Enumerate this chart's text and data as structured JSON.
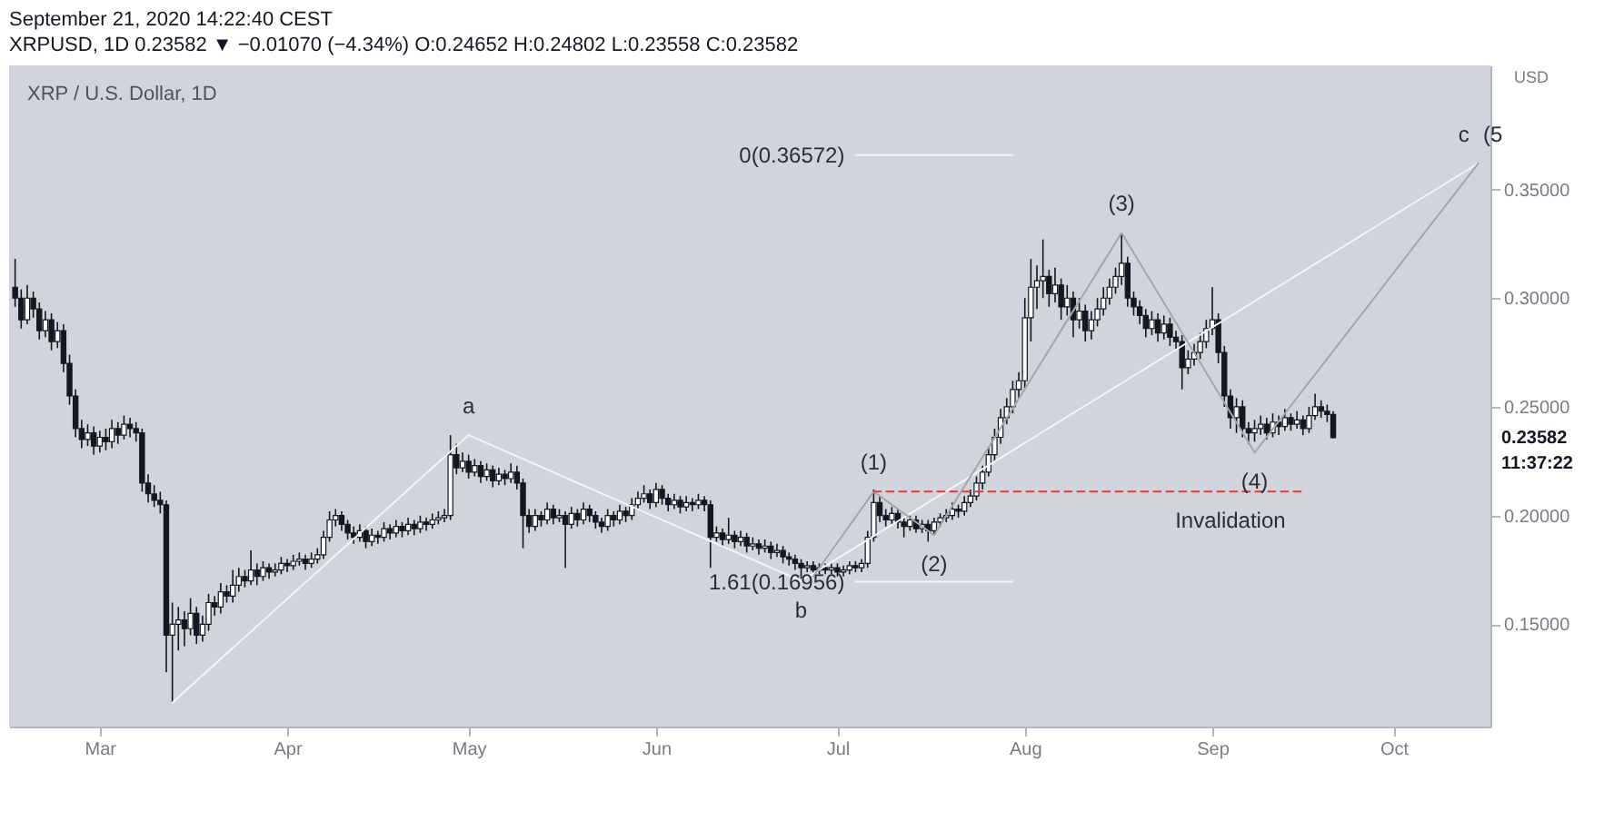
{
  "chart_data": {
    "type": "candlestick",
    "title": "September 21, 2020 14:22:40 CEST",
    "subtitle": "XRPUSD, 1D 0.23582 ▼ −0.01070 (−4.34%) O:0.24652 H:0.24802 L:0.23558 C:0.23582",
    "ylabel": "USD",
    "xlim": [
      "2020-02-15",
      "2020-10-17"
    ],
    "ylim": [
      0.103,
      0.407
    ],
    "xticks": [
      {
        "value": "2020-03-01",
        "label": "Mar"
      },
      {
        "value": "2020-04-01",
        "label": "Apr"
      },
      {
        "value": "2020-05-01",
        "label": "May"
      },
      {
        "value": "2020-06-01",
        "label": "Jun"
      },
      {
        "value": "2020-07-01",
        "label": "Jul"
      },
      {
        "value": "2020-08-01",
        "label": "Aug"
      },
      {
        "value": "2020-09-01",
        "label": "Sep"
      },
      {
        "value": "2020-10-01",
        "label": "Oct"
      }
    ],
    "yticks": [
      {
        "value": 0.15,
        "label": "0.15000"
      },
      {
        "value": 0.2,
        "label": "0.20000"
      },
      {
        "value": 0.25,
        "label": "0.25000"
      },
      {
        "value": 0.3,
        "label": "0.30000"
      },
      {
        "value": 0.35,
        "label": "0.35000"
      }
    ],
    "x": [
      "2020-02-16",
      "2020-02-17",
      "2020-02-18",
      "2020-02-19",
      "2020-02-20",
      "2020-02-21",
      "2020-02-22",
      "2020-02-23",
      "2020-02-24",
      "2020-02-25",
      "2020-02-26",
      "2020-02-27",
      "2020-02-28",
      "2020-02-29",
      "2020-03-01",
      "2020-03-02",
      "2020-03-03",
      "2020-03-04",
      "2020-03-05",
      "2020-03-06",
      "2020-03-07",
      "2020-03-08",
      "2020-03-09",
      "2020-03-10",
      "2020-03-11",
      "2020-03-12",
      "2020-03-13",
      "2020-03-14",
      "2020-03-15",
      "2020-03-16",
      "2020-03-17",
      "2020-03-18",
      "2020-03-19",
      "2020-03-20",
      "2020-03-21",
      "2020-03-22",
      "2020-03-23",
      "2020-03-24",
      "2020-03-25",
      "2020-03-26",
      "2020-03-27",
      "2020-03-28",
      "2020-03-29",
      "2020-03-30",
      "2020-03-31",
      "2020-04-01",
      "2020-04-02",
      "2020-04-03",
      "2020-04-04",
      "2020-04-05",
      "2020-04-06",
      "2020-04-07",
      "2020-04-08",
      "2020-04-09",
      "2020-04-10",
      "2020-04-11",
      "2020-04-12",
      "2020-04-13",
      "2020-04-14",
      "2020-04-15",
      "2020-04-16",
      "2020-04-17",
      "2020-04-18",
      "2020-04-19",
      "2020-04-20",
      "2020-04-21",
      "2020-04-22",
      "2020-04-23",
      "2020-04-24",
      "2020-04-25",
      "2020-04-26",
      "2020-04-27",
      "2020-04-28",
      "2020-04-29",
      "2020-04-30",
      "2020-05-01",
      "2020-05-02",
      "2020-05-03",
      "2020-05-04",
      "2020-05-05",
      "2020-05-06",
      "2020-05-07",
      "2020-05-08",
      "2020-05-09",
      "2020-05-10",
      "2020-05-11",
      "2020-05-12",
      "2020-05-13",
      "2020-05-14",
      "2020-05-15",
      "2020-05-16",
      "2020-05-17",
      "2020-05-18",
      "2020-05-19",
      "2020-05-20",
      "2020-05-21",
      "2020-05-22",
      "2020-05-23",
      "2020-05-24",
      "2020-05-25",
      "2020-05-26",
      "2020-05-27",
      "2020-05-28",
      "2020-05-29",
      "2020-05-30",
      "2020-05-31",
      "2020-06-01",
      "2020-06-02",
      "2020-06-03",
      "2020-06-04",
      "2020-06-05",
      "2020-06-06",
      "2020-06-07",
      "2020-06-08",
      "2020-06-09",
      "2020-06-10",
      "2020-06-11",
      "2020-06-12",
      "2020-06-13",
      "2020-06-14",
      "2020-06-15",
      "2020-06-16",
      "2020-06-17",
      "2020-06-18",
      "2020-06-19",
      "2020-06-20",
      "2020-06-21",
      "2020-06-22",
      "2020-06-23",
      "2020-06-24",
      "2020-06-25",
      "2020-06-26",
      "2020-06-27",
      "2020-06-28",
      "2020-06-29",
      "2020-06-30",
      "2020-07-01",
      "2020-07-02",
      "2020-07-03",
      "2020-07-04",
      "2020-07-05",
      "2020-07-06",
      "2020-07-07",
      "2020-07-08",
      "2020-07-09",
      "2020-07-10",
      "2020-07-11",
      "2020-07-12",
      "2020-07-13",
      "2020-07-14",
      "2020-07-15",
      "2020-07-16",
      "2020-07-17",
      "2020-07-18",
      "2020-07-19",
      "2020-07-20",
      "2020-07-21",
      "2020-07-22",
      "2020-07-23",
      "2020-07-24",
      "2020-07-25",
      "2020-07-26",
      "2020-07-27",
      "2020-07-28",
      "2020-07-29",
      "2020-07-30",
      "2020-07-31",
      "2020-08-01",
      "2020-08-02",
      "2020-08-03",
      "2020-08-04",
      "2020-08-05",
      "2020-08-06",
      "2020-08-07",
      "2020-08-08",
      "2020-08-09",
      "2020-08-10",
      "2020-08-11",
      "2020-08-12",
      "2020-08-13",
      "2020-08-14",
      "2020-08-15",
      "2020-08-16",
      "2020-08-17",
      "2020-08-18",
      "2020-08-19",
      "2020-08-20",
      "2020-08-21",
      "2020-08-22",
      "2020-08-23",
      "2020-08-24",
      "2020-08-25",
      "2020-08-26",
      "2020-08-27",
      "2020-08-28",
      "2020-08-29",
      "2020-08-30",
      "2020-08-31",
      "2020-09-01",
      "2020-09-02",
      "2020-09-03",
      "2020-09-04",
      "2020-09-05",
      "2020-09-06",
      "2020-09-07",
      "2020-09-08",
      "2020-09-09",
      "2020-09-10",
      "2020-09-11",
      "2020-09-12",
      "2020-09-13",
      "2020-09-14",
      "2020-09-15",
      "2020-09-16",
      "2020-09-17",
      "2020-09-18",
      "2020-09-19",
      "2020-09-20",
      "2020-09-21"
    ],
    "ohlc": [
      [
        0.305,
        0.318,
        0.296,
        0.3
      ],
      [
        0.3,
        0.304,
        0.286,
        0.29
      ],
      [
        0.29,
        0.306,
        0.288,
        0.3
      ],
      [
        0.3,
        0.303,
        0.291,
        0.295
      ],
      [
        0.295,
        0.298,
        0.281,
        0.285
      ],
      [
        0.285,
        0.294,
        0.282,
        0.29
      ],
      [
        0.29,
        0.293,
        0.276,
        0.28
      ],
      [
        0.28,
        0.289,
        0.277,
        0.285
      ],
      [
        0.285,
        0.288,
        0.266,
        0.27
      ],
      [
        0.27,
        0.274,
        0.251,
        0.255
      ],
      [
        0.255,
        0.258,
        0.236,
        0.24
      ],
      [
        0.24,
        0.244,
        0.231,
        0.235
      ],
      [
        0.235,
        0.242,
        0.232,
        0.238
      ],
      [
        0.238,
        0.241,
        0.228,
        0.232
      ],
      [
        0.232,
        0.239,
        0.229,
        0.236
      ],
      [
        0.236,
        0.24,
        0.23,
        0.234
      ],
      [
        0.234,
        0.244,
        0.231,
        0.24
      ],
      [
        0.24,
        0.243,
        0.233,
        0.237
      ],
      [
        0.237,
        0.246,
        0.235,
        0.242
      ],
      [
        0.242,
        0.245,
        0.236,
        0.24
      ],
      [
        0.24,
        0.243,
        0.234,
        0.238
      ],
      [
        0.238,
        0.24,
        0.211,
        0.215
      ],
      [
        0.215,
        0.219,
        0.206,
        0.21
      ],
      [
        0.21,
        0.214,
        0.204,
        0.207
      ],
      [
        0.207,
        0.211,
        0.201,
        0.205
      ],
      [
        0.205,
        0.207,
        0.128,
        0.145
      ],
      [
        0.145,
        0.16,
        0.114,
        0.15
      ],
      [
        0.15,
        0.158,
        0.138,
        0.152
      ],
      [
        0.152,
        0.156,
        0.14,
        0.148
      ],
      [
        0.148,
        0.162,
        0.145,
        0.155
      ],
      [
        0.155,
        0.158,
        0.141,
        0.145
      ],
      [
        0.145,
        0.154,
        0.142,
        0.15
      ],
      [
        0.15,
        0.164,
        0.147,
        0.16
      ],
      [
        0.16,
        0.163,
        0.154,
        0.158
      ],
      [
        0.158,
        0.169,
        0.155,
        0.165
      ],
      [
        0.165,
        0.168,
        0.16,
        0.163
      ],
      [
        0.163,
        0.175,
        0.16,
        0.168
      ],
      [
        0.168,
        0.176,
        0.165,
        0.172
      ],
      [
        0.172,
        0.175,
        0.167,
        0.17
      ],
      [
        0.17,
        0.184,
        0.168,
        0.175
      ],
      [
        0.175,
        0.178,
        0.168,
        0.172
      ],
      [
        0.172,
        0.179,
        0.17,
        0.176
      ],
      [
        0.176,
        0.178,
        0.171,
        0.174
      ],
      [
        0.174,
        0.178,
        0.172,
        0.175
      ],
      [
        0.175,
        0.181,
        0.173,
        0.178
      ],
      [
        0.178,
        0.18,
        0.174,
        0.177
      ],
      [
        0.177,
        0.182,
        0.175,
        0.179
      ],
      [
        0.179,
        0.183,
        0.177,
        0.18
      ],
      [
        0.18,
        0.182,
        0.175,
        0.178
      ],
      [
        0.178,
        0.183,
        0.176,
        0.18
      ],
      [
        0.18,
        0.185,
        0.178,
        0.182
      ],
      [
        0.182,
        0.193,
        0.18,
        0.19
      ],
      [
        0.19,
        0.202,
        0.188,
        0.198
      ],
      [
        0.198,
        0.203,
        0.195,
        0.2
      ],
      [
        0.2,
        0.202,
        0.193,
        0.196
      ],
      [
        0.196,
        0.198,
        0.189,
        0.192
      ],
      [
        0.192,
        0.195,
        0.187,
        0.19
      ],
      [
        0.19,
        0.196,
        0.188,
        0.193
      ],
      [
        0.193,
        0.195,
        0.185,
        0.188
      ],
      [
        0.188,
        0.194,
        0.186,
        0.191
      ],
      [
        0.191,
        0.193,
        0.187,
        0.19
      ],
      [
        0.19,
        0.197,
        0.188,
        0.194
      ],
      [
        0.194,
        0.196,
        0.189,
        0.192
      ],
      [
        0.192,
        0.198,
        0.19,
        0.195
      ],
      [
        0.195,
        0.197,
        0.19,
        0.193
      ],
      [
        0.193,
        0.199,
        0.191,
        0.196
      ],
      [
        0.196,
        0.198,
        0.191,
        0.194
      ],
      [
        0.194,
        0.2,
        0.192,
        0.197
      ],
      [
        0.197,
        0.199,
        0.193,
        0.196
      ],
      [
        0.196,
        0.201,
        0.194,
        0.198
      ],
      [
        0.198,
        0.202,
        0.196,
        0.199
      ],
      [
        0.199,
        0.203,
        0.197,
        0.2
      ],
      [
        0.2,
        0.237,
        0.198,
        0.228
      ],
      [
        0.228,
        0.233,
        0.219,
        0.222
      ],
      [
        0.222,
        0.229,
        0.22,
        0.225
      ],
      [
        0.225,
        0.228,
        0.217,
        0.22
      ],
      [
        0.22,
        0.226,
        0.218,
        0.223
      ],
      [
        0.223,
        0.225,
        0.215,
        0.218
      ],
      [
        0.218,
        0.224,
        0.216,
        0.221
      ],
      [
        0.221,
        0.223,
        0.213,
        0.216
      ],
      [
        0.216,
        0.222,
        0.214,
        0.219
      ],
      [
        0.219,
        0.221,
        0.214,
        0.217
      ],
      [
        0.217,
        0.224,
        0.215,
        0.22
      ],
      [
        0.22,
        0.223,
        0.212,
        0.215
      ],
      [
        0.215,
        0.217,
        0.185,
        0.2
      ],
      [
        0.2,
        0.203,
        0.192,
        0.195
      ],
      [
        0.195,
        0.203,
        0.193,
        0.2
      ],
      [
        0.2,
        0.202,
        0.195,
        0.198
      ],
      [
        0.198,
        0.206,
        0.196,
        0.203
      ],
      [
        0.203,
        0.205,
        0.196,
        0.199
      ],
      [
        0.199,
        0.203,
        0.197,
        0.2
      ],
      [
        0.2,
        0.202,
        0.176,
        0.196
      ],
      [
        0.196,
        0.204,
        0.194,
        0.201
      ],
      [
        0.201,
        0.203,
        0.195,
        0.198
      ],
      [
        0.198,
        0.206,
        0.196,
        0.203
      ],
      [
        0.203,
        0.205,
        0.197,
        0.2
      ],
      [
        0.2,
        0.202,
        0.194,
        0.197
      ],
      [
        0.197,
        0.199,
        0.192,
        0.195
      ],
      [
        0.195,
        0.203,
        0.193,
        0.2
      ],
      [
        0.2,
        0.202,
        0.195,
        0.198
      ],
      [
        0.198,
        0.205,
        0.196,
        0.202
      ],
      [
        0.202,
        0.204,
        0.197,
        0.2
      ],
      [
        0.2,
        0.208,
        0.198,
        0.205
      ],
      [
        0.205,
        0.211,
        0.203,
        0.208
      ],
      [
        0.208,
        0.214,
        0.206,
        0.21
      ],
      [
        0.21,
        0.212,
        0.203,
        0.206
      ],
      [
        0.206,
        0.215,
        0.204,
        0.212
      ],
      [
        0.212,
        0.214,
        0.205,
        0.208
      ],
      [
        0.208,
        0.21,
        0.202,
        0.205
      ],
      [
        0.205,
        0.21,
        0.203,
        0.207
      ],
      [
        0.207,
        0.209,
        0.201,
        0.204
      ],
      [
        0.204,
        0.209,
        0.202,
        0.206
      ],
      [
        0.206,
        0.208,
        0.202,
        0.205
      ],
      [
        0.205,
        0.21,
        0.203,
        0.207
      ],
      [
        0.207,
        0.209,
        0.202,
        0.205
      ],
      [
        0.205,
        0.207,
        0.176,
        0.19
      ],
      [
        0.19,
        0.195,
        0.188,
        0.192
      ],
      [
        0.192,
        0.194,
        0.186,
        0.189
      ],
      [
        0.189,
        0.199,
        0.187,
        0.191
      ],
      [
        0.191,
        0.193,
        0.185,
        0.188
      ],
      [
        0.188,
        0.193,
        0.186,
        0.19
      ],
      [
        0.19,
        0.192,
        0.183,
        0.186
      ],
      [
        0.186,
        0.19,
        0.184,
        0.187
      ],
      [
        0.187,
        0.189,
        0.182,
        0.185
      ],
      [
        0.185,
        0.189,
        0.183,
        0.186
      ],
      [
        0.186,
        0.188,
        0.18,
        0.183
      ],
      [
        0.183,
        0.187,
        0.181,
        0.184
      ],
      [
        0.184,
        0.186,
        0.178,
        0.181
      ],
      [
        0.181,
        0.183,
        0.177,
        0.18
      ],
      [
        0.18,
        0.182,
        0.175,
        0.178
      ],
      [
        0.178,
        0.18,
        0.171,
        0.176
      ],
      [
        0.176,
        0.179,
        0.174,
        0.177
      ],
      [
        0.177,
        0.179,
        0.173,
        0.175
      ],
      [
        0.175,
        0.178,
        0.173,
        0.176
      ],
      [
        0.176,
        0.178,
        0.173,
        0.175
      ],
      [
        0.175,
        0.178,
        0.173,
        0.176
      ],
      [
        0.176,
        0.178,
        0.172,
        0.174
      ],
      [
        0.174,
        0.177,
        0.172,
        0.175
      ],
      [
        0.175,
        0.179,
        0.173,
        0.177
      ],
      [
        0.177,
        0.179,
        0.174,
        0.176
      ],
      [
        0.176,
        0.18,
        0.174,
        0.178
      ],
      [
        0.178,
        0.193,
        0.176,
        0.19
      ],
      [
        0.19,
        0.212,
        0.188,
        0.206
      ],
      [
        0.206,
        0.209,
        0.197,
        0.2
      ],
      [
        0.2,
        0.203,
        0.195,
        0.198
      ],
      [
        0.198,
        0.204,
        0.196,
        0.201
      ],
      [
        0.201,
        0.203,
        0.194,
        0.197
      ],
      [
        0.197,
        0.199,
        0.19,
        0.195
      ],
      [
        0.195,
        0.2,
        0.193,
        0.198
      ],
      [
        0.198,
        0.2,
        0.192,
        0.194
      ],
      [
        0.194,
        0.198,
        0.192,
        0.196
      ],
      [
        0.196,
        0.198,
        0.188,
        0.193
      ],
      [
        0.193,
        0.199,
        0.191,
        0.197
      ],
      [
        0.197,
        0.201,
        0.195,
        0.199
      ],
      [
        0.199,
        0.203,
        0.197,
        0.2
      ],
      [
        0.2,
        0.206,
        0.198,
        0.203
      ],
      [
        0.203,
        0.205,
        0.199,
        0.202
      ],
      [
        0.202,
        0.209,
        0.2,
        0.206
      ],
      [
        0.206,
        0.212,
        0.204,
        0.209
      ],
      [
        0.209,
        0.218,
        0.207,
        0.215
      ],
      [
        0.215,
        0.223,
        0.212,
        0.22
      ],
      [
        0.22,
        0.231,
        0.218,
        0.228
      ],
      [
        0.228,
        0.24,
        0.225,
        0.236
      ],
      [
        0.236,
        0.249,
        0.233,
        0.245
      ],
      [
        0.245,
        0.254,
        0.242,
        0.25
      ],
      [
        0.25,
        0.262,
        0.247,
        0.258
      ],
      [
        0.258,
        0.266,
        0.254,
        0.262
      ],
      [
        0.262,
        0.3,
        0.258,
        0.291
      ],
      [
        0.291,
        0.318,
        0.28,
        0.305
      ],
      [
        0.305,
        0.315,
        0.295,
        0.308
      ],
      [
        0.308,
        0.327,
        0.3,
        0.31
      ],
      [
        0.31,
        0.313,
        0.296,
        0.302
      ],
      [
        0.302,
        0.314,
        0.298,
        0.306
      ],
      [
        0.306,
        0.309,
        0.29,
        0.296
      ],
      [
        0.296,
        0.306,
        0.292,
        0.3
      ],
      [
        0.3,
        0.303,
        0.282,
        0.29
      ],
      [
        0.29,
        0.3,
        0.286,
        0.294
      ],
      [
        0.294,
        0.297,
        0.28,
        0.285
      ],
      [
        0.285,
        0.294,
        0.281,
        0.29
      ],
      [
        0.29,
        0.3,
        0.287,
        0.295
      ],
      [
        0.295,
        0.305,
        0.292,
        0.3
      ],
      [
        0.3,
        0.309,
        0.297,
        0.305
      ],
      [
        0.305,
        0.314,
        0.302,
        0.31
      ],
      [
        0.31,
        0.33,
        0.306,
        0.316
      ],
      [
        0.316,
        0.319,
        0.296,
        0.3
      ],
      [
        0.3,
        0.303,
        0.292,
        0.296
      ],
      [
        0.296,
        0.299,
        0.288,
        0.292
      ],
      [
        0.292,
        0.295,
        0.282,
        0.286
      ],
      [
        0.286,
        0.294,
        0.283,
        0.29
      ],
      [
        0.29,
        0.293,
        0.28,
        0.284
      ],
      [
        0.284,
        0.292,
        0.281,
        0.288
      ],
      [
        0.288,
        0.291,
        0.278,
        0.282
      ],
      [
        0.282,
        0.285,
        0.276,
        0.28
      ],
      [
        0.28,
        0.283,
        0.258,
        0.268
      ],
      [
        0.268,
        0.276,
        0.265,
        0.272
      ],
      [
        0.272,
        0.279,
        0.269,
        0.275
      ],
      [
        0.275,
        0.284,
        0.272,
        0.28
      ],
      [
        0.28,
        0.29,
        0.277,
        0.286
      ],
      [
        0.286,
        0.305,
        0.283,
        0.29
      ],
      [
        0.29,
        0.293,
        0.27,
        0.275
      ],
      [
        0.275,
        0.278,
        0.25,
        0.255
      ],
      [
        0.255,
        0.258,
        0.24,
        0.245
      ],
      [
        0.245,
        0.254,
        0.238,
        0.25
      ],
      [
        0.25,
        0.253,
        0.236,
        0.24
      ],
      [
        0.24,
        0.243,
        0.233,
        0.238
      ],
      [
        0.238,
        0.244,
        0.234,
        0.24
      ],
      [
        0.24,
        0.246,
        0.237,
        0.242
      ],
      [
        0.242,
        0.245,
        0.235,
        0.238
      ],
      [
        0.238,
        0.247,
        0.236,
        0.243
      ],
      [
        0.243,
        0.246,
        0.237,
        0.241
      ],
      [
        0.241,
        0.249,
        0.239,
        0.245
      ],
      [
        0.245,
        0.247,
        0.239,
        0.242
      ],
      [
        0.242,
        0.248,
        0.24,
        0.244
      ],
      [
        0.244,
        0.246,
        0.237,
        0.24
      ],
      [
        0.24,
        0.25,
        0.238,
        0.246
      ],
      [
        0.246,
        0.256,
        0.244,
        0.25
      ],
      [
        0.25,
        0.253,
        0.245,
        0.248
      ],
      [
        0.248,
        0.251,
        0.243,
        0.2465
      ],
      [
        0.24652,
        0.24802,
        0.23558,
        0.23582
      ]
    ],
    "series": [
      {
        "type": "line",
        "color": "#f4f5f8",
        "x": [
          "2020-03-13",
          "2020-05-01",
          "2020-06-25",
          "2020-10-15"
        ],
        "values": [
          0.114,
          0.237,
          0.17,
          0.362
        ]
      },
      {
        "type": "line",
        "color": "#a3a6ae",
        "x": [
          "2020-06-27",
          "2020-07-07",
          "2020-07-17",
          "2020-08-17",
          "2020-09-08",
          "2020-10-15"
        ],
        "values": [
          0.172,
          0.211,
          0.191,
          0.33,
          0.229,
          0.362
        ]
      },
      {
        "type": "line",
        "color": "#f4f5f8",
        "x": [
          "2020-07-04",
          "2020-07-30"
        ],
        "values": [
          0.36572,
          0.36572
        ]
      },
      {
        "type": "line",
        "color": "#f4f5f8",
        "x": [
          "2020-07-04",
          "2020-07-30"
        ],
        "values": [
          0.16956,
          0.16956
        ]
      },
      {
        "type": "line",
        "color": "#e53935",
        "line_style": "dashed",
        "x": [
          "2020-07-07",
          "2020-09-16"
        ],
        "values": [
          0.211,
          0.211
        ]
      }
    ],
    "annotations": [
      "XRP / U.S. Dollar, 1D",
      {
        "text": "a",
        "x": "2020-05-01",
        "y": 0.237
      },
      {
        "text": "b",
        "x": "2020-06-25",
        "y": 0.17
      },
      {
        "text": "c",
        "x": "2020-10-15",
        "y": 0.362
      },
      {
        "text": "(5",
        "x": "2020-10-15",
        "y": 0.362
      },
      {
        "text": "(1)",
        "x": "2020-07-07",
        "y": 0.211
      },
      {
        "text": "(2)",
        "x": "2020-07-17",
        "y": 0.191
      },
      {
        "text": "(3)",
        "x": "2020-08-17",
        "y": 0.33
      },
      {
        "text": "(4)",
        "x": "2020-09-08",
        "y": 0.229
      },
      {
        "text": "Invalidation",
        "x": "2020-09-04",
        "y": 0.211
      },
      {
        "text": "0(0.36572)",
        "x": "2020-07-04",
        "y": 0.36572
      },
      {
        "text": "1.61(0.16956)",
        "x": "2020-07-04",
        "y": 0.16956
      },
      "0.23582",
      "11:37:22"
    ]
  }
}
